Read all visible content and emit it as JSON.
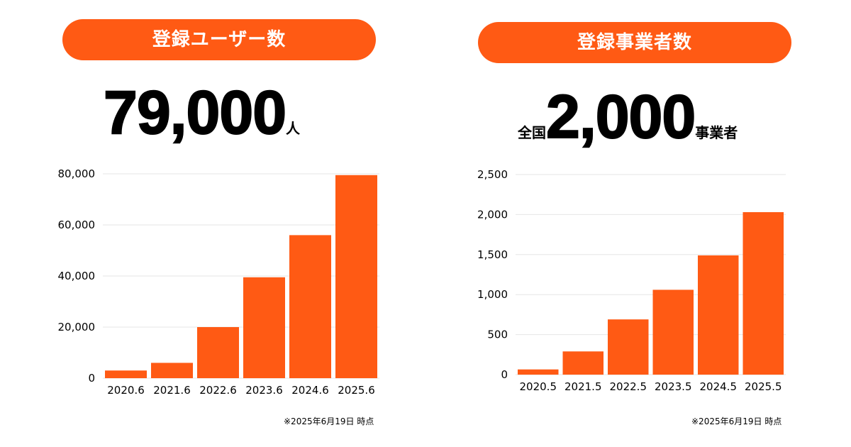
{
  "colors": {
    "accent": "#ff5a14",
    "grid": "#e6e6e6",
    "text": "#000000"
  },
  "left": {
    "pill_label": "登録ユーザー数",
    "headline_prefix": "",
    "headline_value": "79,000",
    "headline_suffix": "人",
    "note": "※2025年6月19日 時点"
  },
  "right": {
    "pill_label": "登録事業者数",
    "headline_prefix": "全国",
    "headline_value": "2,000",
    "headline_suffix": "事業者",
    "note": "※2025年6月19日 時点"
  },
  "chart_data": [
    {
      "type": "bar",
      "categories": [
        "2020.6",
        "2021.6",
        "2022.6",
        "2023.6",
        "2024.6",
        "2025.6"
      ],
      "values": [
        3000,
        6000,
        20000,
        39500,
        56000,
        79500
      ],
      "yticks": [
        0,
        20000,
        40000,
        60000,
        80000
      ],
      "ytick_labels": [
        "0",
        "20,000",
        "40,000",
        "60,000",
        "80,000"
      ],
      "ylim": [
        0,
        80000
      ],
      "grid": true,
      "color": "#ff5a14"
    },
    {
      "type": "bar",
      "categories": [
        "2020.5",
        "2021.5",
        "2022.5",
        "2023.5",
        "2024.5",
        "2025.5"
      ],
      "values": [
        65,
        290,
        690,
        1060,
        1490,
        2030
      ],
      "yticks": [
        0,
        500,
        1000,
        1500,
        2000,
        2500
      ],
      "ytick_labels": [
        "0",
        "500",
        "1,000",
        "1,500",
        "2,000",
        "2,500"
      ],
      "ylim": [
        0,
        2500
      ],
      "grid": true,
      "color": "#ff5a14"
    }
  ]
}
